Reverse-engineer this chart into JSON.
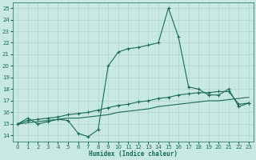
{
  "xlabel": "Humidex (Indice chaleur)",
  "xlim": [
    -0.5,
    23.5
  ],
  "ylim": [
    13.5,
    25.5
  ],
  "xticks": [
    0,
    1,
    2,
    3,
    4,
    5,
    6,
    7,
    8,
    9,
    10,
    11,
    12,
    13,
    14,
    15,
    16,
    17,
    18,
    19,
    20,
    21,
    22,
    23
  ],
  "yticks": [
    14,
    15,
    16,
    17,
    18,
    19,
    20,
    21,
    22,
    23,
    24,
    25
  ],
  "bg_color": "#c8e8e2",
  "grid_color": "#b0d4cc",
  "line_color": "#1a6b5a",
  "line1_x": [
    0,
    1,
    2,
    3,
    4,
    5,
    6,
    7,
    8,
    9,
    10,
    11,
    12,
    13,
    14,
    15,
    16,
    17,
    18,
    19,
    20,
    21,
    22,
    23
  ],
  "line1_y": [
    15.0,
    15.5,
    15.0,
    15.2,
    15.4,
    15.3,
    14.2,
    13.9,
    14.5,
    20.0,
    21.2,
    21.5,
    21.6,
    21.8,
    22.0,
    25.0,
    22.5,
    18.2,
    18.0,
    17.5,
    17.5,
    18.0,
    16.5,
    16.8
  ],
  "line2_x": [
    0,
    1,
    2,
    3,
    4,
    5,
    6,
    7,
    8,
    9,
    10,
    11,
    12,
    13,
    14,
    15,
    16,
    17,
    18,
    19,
    20,
    21,
    22,
    23
  ],
  "line2_y": [
    15.0,
    15.3,
    15.4,
    15.5,
    15.6,
    15.8,
    15.9,
    16.0,
    16.2,
    16.4,
    16.6,
    16.7,
    16.9,
    17.0,
    17.2,
    17.3,
    17.5,
    17.6,
    17.7,
    17.7,
    17.8,
    17.8,
    16.7,
    16.8
  ],
  "line3_x": [
    0,
    1,
    2,
    3,
    4,
    5,
    6,
    7,
    8,
    9,
    10,
    11,
    12,
    13,
    14,
    15,
    16,
    17,
    18,
    19,
    20,
    21,
    22,
    23
  ],
  "line3_y": [
    15.0,
    15.1,
    15.2,
    15.3,
    15.4,
    15.5,
    15.5,
    15.6,
    15.7,
    15.8,
    16.0,
    16.1,
    16.2,
    16.3,
    16.5,
    16.6,
    16.7,
    16.8,
    16.9,
    17.0,
    17.0,
    17.1,
    17.2,
    17.3
  ]
}
